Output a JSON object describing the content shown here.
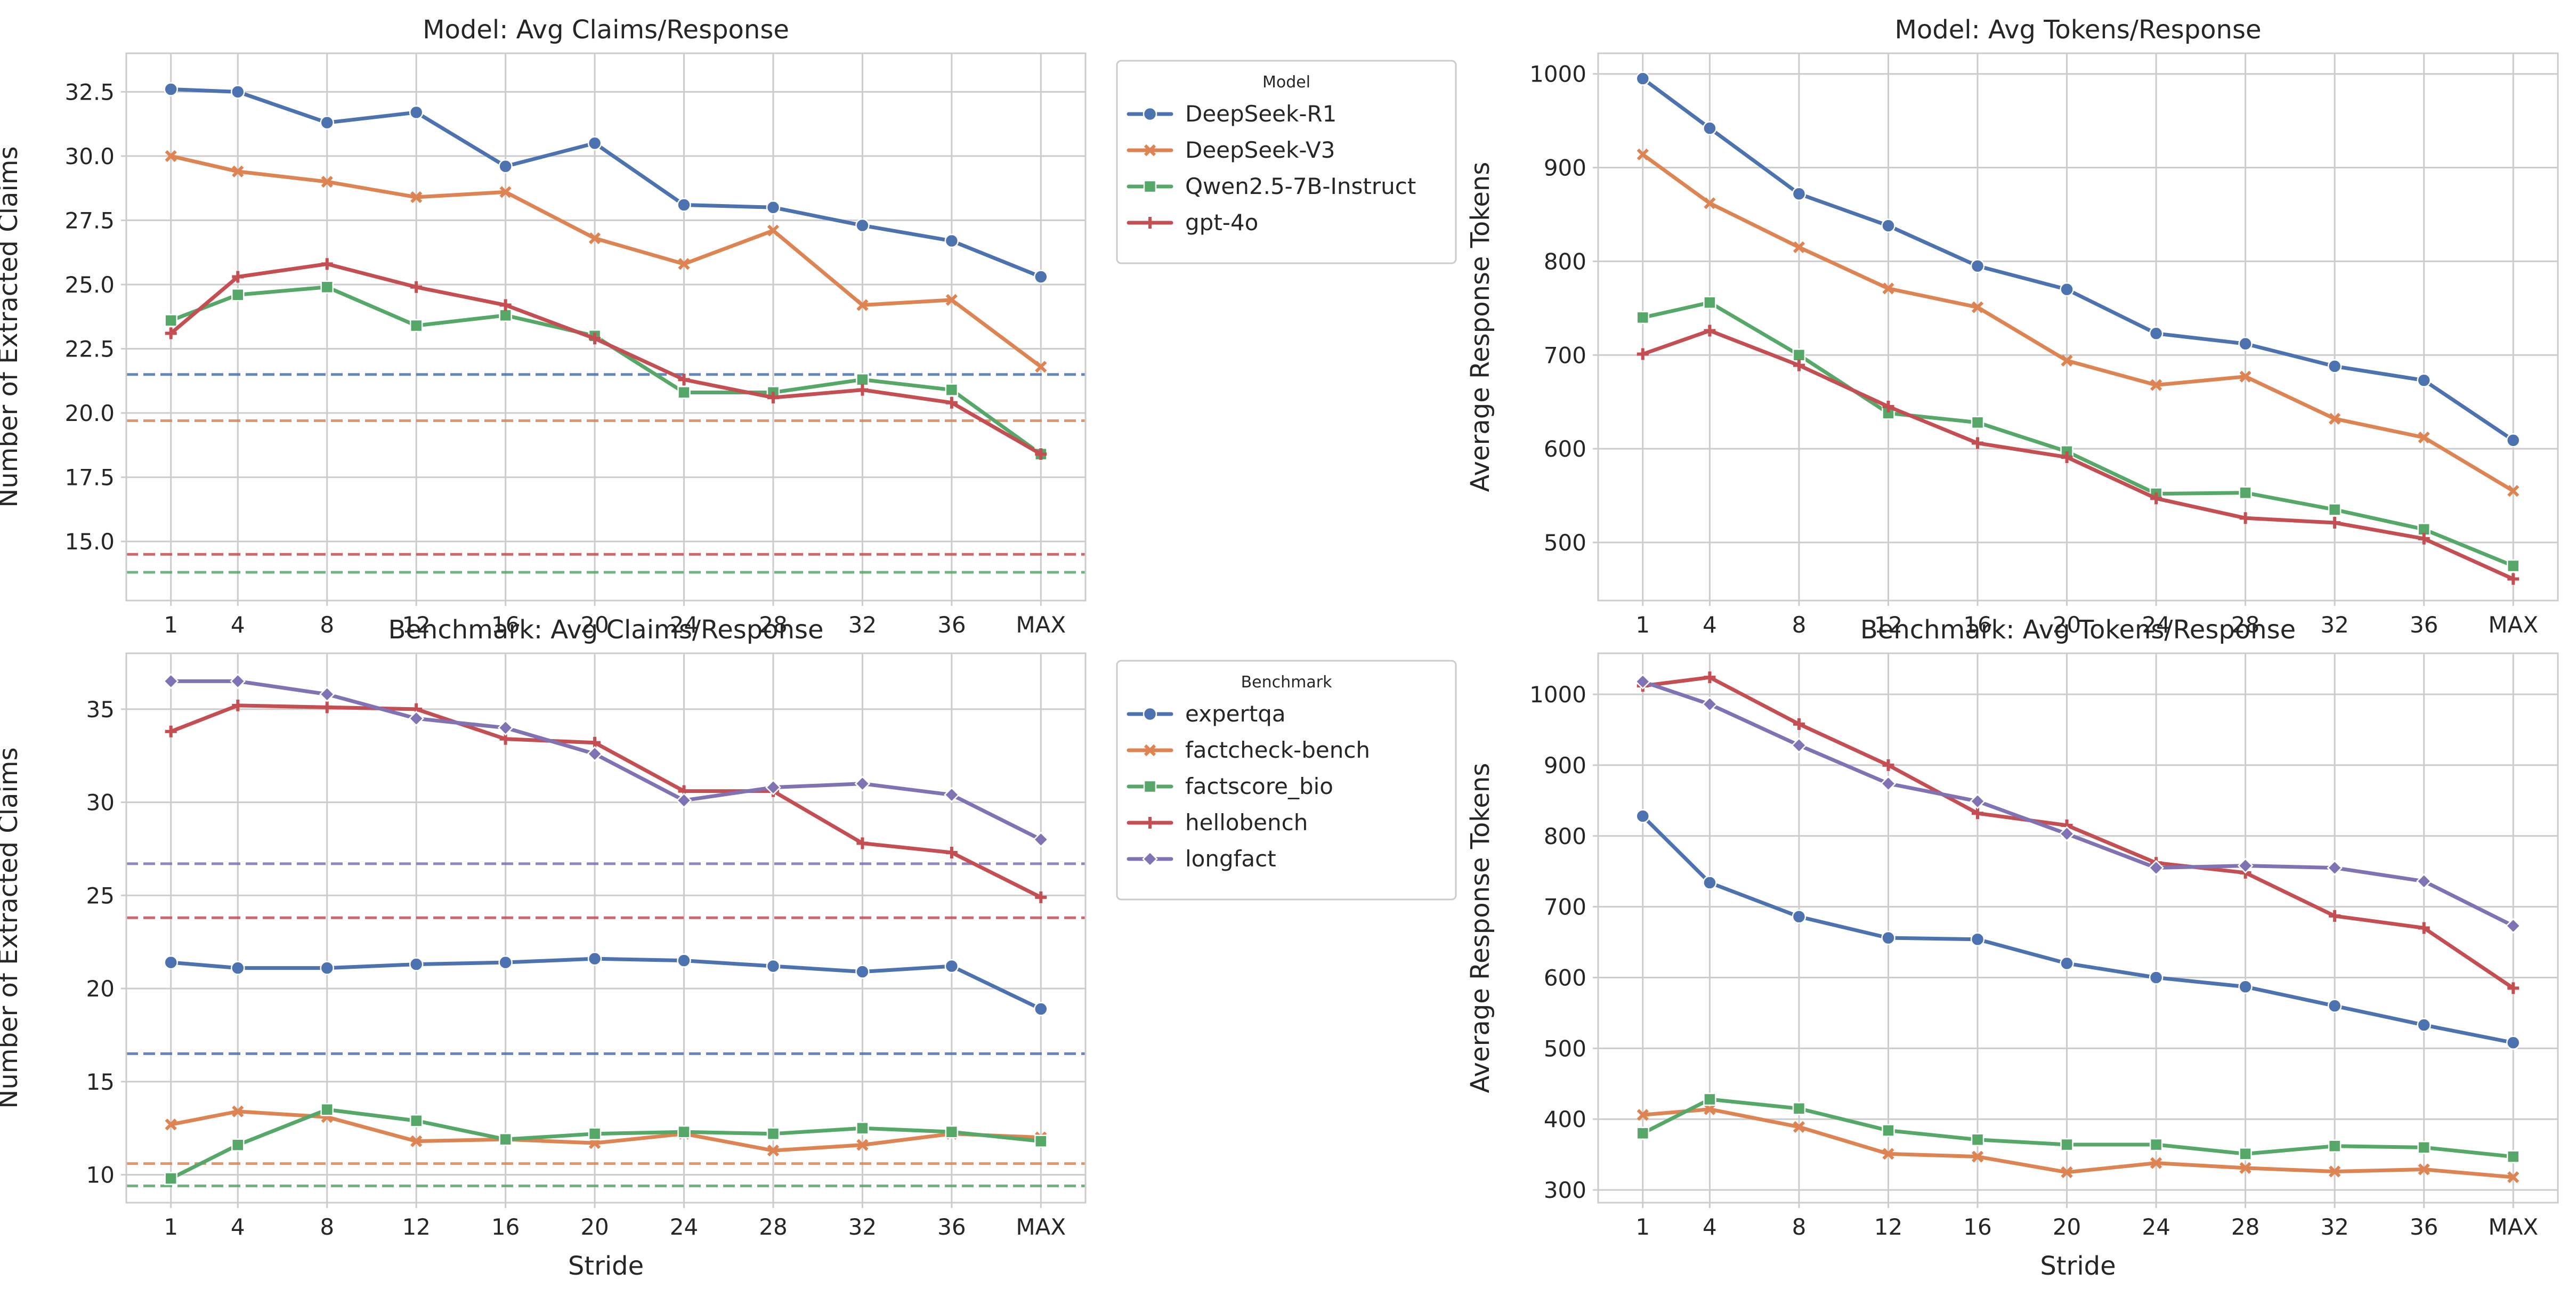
{
  "chart_data": [
    {
      "type": "line",
      "title": "Model: Avg Claims/Response",
      "xlabel": "",
      "ylabel": "Number of Extracted Claims",
      "categories": [
        "1",
        "4",
        "8",
        "12",
        "16",
        "20",
        "24",
        "28",
        "32",
        "36",
        "MAX"
      ],
      "x": [
        1,
        4,
        8,
        12,
        16,
        20,
        24,
        28,
        32,
        36,
        40
      ],
      "ylim": [
        12.7,
        34.0
      ],
      "yticks": [
        15.0,
        17.5,
        20.0,
        22.5,
        25.0,
        27.5,
        30.0,
        32.5
      ],
      "ytick_labels": [
        "15.0",
        "17.5",
        "20.0",
        "22.5",
        "25.0",
        "27.5",
        "30.0",
        "32.5"
      ],
      "grid": true,
      "legend": {
        "title": "Model",
        "placement": "outside-right"
      },
      "series": [
        {
          "name": "DeepSeek-R1",
          "color": "#4c72b0",
          "marker": "circle",
          "values": [
            32.6,
            32.5,
            31.3,
            31.7,
            29.6,
            30.5,
            28.1,
            28.0,
            27.3,
            26.7,
            25.3
          ],
          "baseline": 21.5
        },
        {
          "name": "DeepSeek-V3",
          "color": "#dd8452",
          "marker": "x",
          "values": [
            30.0,
            29.4,
            29.0,
            28.4,
            28.6,
            26.8,
            25.8,
            27.1,
            24.2,
            24.4,
            21.8
          ],
          "baseline": 19.7
        },
        {
          "name": "Qwen2.5-7B-Instruct",
          "color": "#55a868",
          "marker": "square",
          "values": [
            23.6,
            24.6,
            24.9,
            23.4,
            23.8,
            23.0,
            20.8,
            20.8,
            21.3,
            20.9,
            18.4
          ],
          "baseline": 13.8
        },
        {
          "name": "gpt-4o",
          "color": "#c44e52",
          "marker": "plus",
          "values": [
            23.1,
            25.3,
            25.8,
            24.9,
            24.2,
            22.9,
            21.3,
            20.6,
            20.9,
            20.4,
            18.4
          ],
          "baseline": 14.5
        }
      ]
    },
    {
      "type": "line",
      "title": "Model: Avg Tokens/Response",
      "xlabel": "",
      "ylabel": "Average Response Tokens",
      "categories": [
        "1",
        "4",
        "8",
        "12",
        "16",
        "20",
        "24",
        "28",
        "32",
        "36",
        "MAX"
      ],
      "x": [
        1,
        4,
        8,
        12,
        16,
        20,
        24,
        28,
        32,
        36,
        40
      ],
      "ylim": [
        438,
        1022
      ],
      "yticks": [
        500,
        600,
        700,
        800,
        900,
        1000
      ],
      "ytick_labels": [
        "500",
        "600",
        "700",
        "800",
        "900",
        "1000"
      ],
      "grid": true,
      "series": [
        {
          "name": "DeepSeek-R1",
          "color": "#4c72b0",
          "marker": "circle",
          "values": [
            995,
            942,
            872,
            838,
            795,
            770,
            723,
            712,
            688,
            673,
            609
          ]
        },
        {
          "name": "DeepSeek-V3",
          "color": "#dd8452",
          "marker": "x",
          "values": [
            914,
            862,
            815,
            771,
            751,
            694,
            668,
            677,
            632,
            612,
            555
          ]
        },
        {
          "name": "Qwen2.5-7B-Instruct",
          "color": "#55a868",
          "marker": "square",
          "values": [
            740,
            756,
            700,
            638,
            628,
            597,
            552,
            553,
            535,
            514,
            475
          ]
        },
        {
          "name": "gpt-4o",
          "color": "#c44e52",
          "marker": "plus",
          "values": [
            701,
            726,
            689,
            645,
            606,
            591,
            547,
            526,
            521,
            504,
            461
          ]
        }
      ]
    },
    {
      "type": "line",
      "title": "Benchmark: Avg Claims/Response",
      "xlabel": "Stride",
      "ylabel": "Number of Extracted Claims",
      "categories": [
        "1",
        "4",
        "8",
        "12",
        "16",
        "20",
        "24",
        "28",
        "32",
        "36",
        "MAX"
      ],
      "x": [
        1,
        4,
        8,
        12,
        16,
        20,
        24,
        28,
        32,
        36,
        40
      ],
      "ylim": [
        8.5,
        38.0
      ],
      "yticks": [
        10,
        15,
        20,
        25,
        30,
        35
      ],
      "ytick_labels": [
        "10",
        "15",
        "20",
        "25",
        "30",
        "35"
      ],
      "grid": true,
      "legend": {
        "title": "Benchmark",
        "placement": "outside-right"
      },
      "series": [
        {
          "name": "expertqa",
          "color": "#4c72b0",
          "marker": "circle",
          "values": [
            21.4,
            21.1,
            21.1,
            21.3,
            21.4,
            21.6,
            21.5,
            21.2,
            20.9,
            21.2,
            18.9
          ],
          "baseline": 16.5
        },
        {
          "name": "factcheck-bench",
          "color": "#dd8452",
          "marker": "x",
          "values": [
            12.7,
            13.4,
            13.1,
            11.8,
            11.9,
            11.7,
            12.2,
            11.3,
            11.6,
            12.2,
            12.0
          ],
          "baseline": 10.6
        },
        {
          "name": "factscore_bio",
          "color": "#55a868",
          "marker": "square",
          "values": [
            9.8,
            11.6,
            13.5,
            12.9,
            11.9,
            12.2,
            12.3,
            12.2,
            12.5,
            12.3,
            11.8
          ],
          "baseline": 9.4
        },
        {
          "name": "hellobench",
          "color": "#c44e52",
          "marker": "plus",
          "values": [
            33.8,
            35.2,
            35.1,
            35.0,
            33.4,
            33.2,
            30.6,
            30.6,
            27.8,
            27.3,
            24.9
          ],
          "baseline": 23.8
        },
        {
          "name": "longfact",
          "color": "#8172b3",
          "marker": "diamond",
          "values": [
            36.5,
            36.5,
            35.8,
            34.5,
            34.0,
            32.6,
            30.1,
            30.8,
            31.0,
            30.4,
            28.0
          ],
          "baseline": 26.7
        }
      ]
    },
    {
      "type": "line",
      "title": "Benchmark: Avg Tokens/Response",
      "xlabel": "Stride",
      "ylabel": "Average Response Tokens",
      "categories": [
        "1",
        "4",
        "8",
        "12",
        "16",
        "20",
        "24",
        "28",
        "32",
        "36",
        "MAX"
      ],
      "x": [
        1,
        4,
        8,
        12,
        16,
        20,
        24,
        28,
        32,
        36,
        40
      ],
      "ylim": [
        282,
        1058
      ],
      "yticks": [
        300,
        400,
        500,
        600,
        700,
        800,
        900,
        1000
      ],
      "ytick_labels": [
        "300",
        "400",
        "500",
        "600",
        "700",
        "800",
        "900",
        "1000"
      ],
      "grid": true,
      "series": [
        {
          "name": "expertqa",
          "color": "#4c72b0",
          "marker": "circle",
          "values": [
            828,
            734,
            686,
            656,
            654,
            620,
            600,
            587,
            560,
            533,
            508
          ]
        },
        {
          "name": "factcheck-bench",
          "color": "#dd8452",
          "marker": "x",
          "values": [
            406,
            414,
            389,
            351,
            347,
            325,
            338,
            331,
            326,
            329,
            318
          ]
        },
        {
          "name": "factscore_bio",
          "color": "#55a868",
          "marker": "square",
          "values": [
            380,
            428,
            415,
            384,
            371,
            364,
            364,
            351,
            362,
            360,
            347
          ]
        },
        {
          "name": "hellobench",
          "color": "#c44e52",
          "marker": "plus",
          "values": [
            1012,
            1024,
            958,
            900,
            832,
            815,
            762,
            748,
            687,
            670,
            585
          ]
        },
        {
          "name": "longfact",
          "color": "#8172b3",
          "marker": "diamond",
          "values": [
            1018,
            986,
            928,
            874,
            849,
            803,
            755,
            758,
            755,
            736,
            673
          ]
        }
      ]
    }
  ]
}
